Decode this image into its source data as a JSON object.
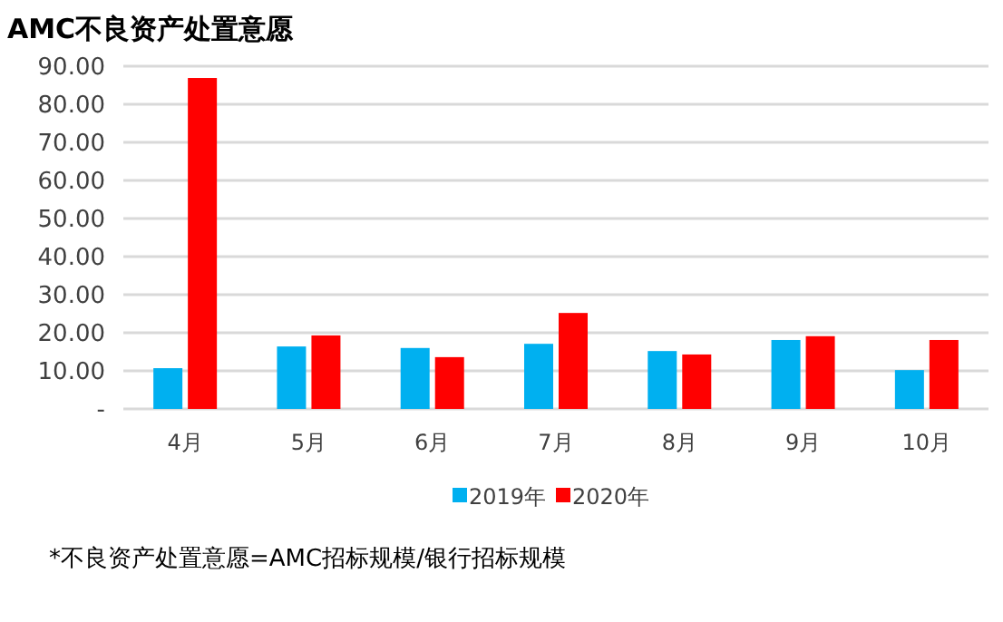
{
  "chart_data": {
    "type": "bar",
    "title": "AMC不良资产处置意愿",
    "categories": [
      "4月",
      "5月",
      "6月",
      "7月",
      "8月",
      "9月",
      "10月"
    ],
    "series": [
      {
        "name": "2019年",
        "color": "#00b0f0",
        "values": [
          10.7,
          16.4,
          16.0,
          17.1,
          15.2,
          18.1,
          10.2
        ]
      },
      {
        "name": "2020年",
        "color": "#ff0000",
        "values": [
          86.9,
          19.3,
          13.6,
          25.2,
          14.3,
          19.1,
          18.1
        ]
      }
    ],
    "ylim": [
      0,
      90
    ],
    "yticks": [
      {
        "value": 0,
        "label": "-"
      },
      {
        "value": 10,
        "label": "10.00"
      },
      {
        "value": 20,
        "label": "20.00"
      },
      {
        "value": 30,
        "label": "30.00"
      },
      {
        "value": 40,
        "label": "40.00"
      },
      {
        "value": 50,
        "label": "50.00"
      },
      {
        "value": 60,
        "label": "60.00"
      },
      {
        "value": 70,
        "label": "70.00"
      },
      {
        "value": 80,
        "label": "80.00"
      },
      {
        "value": 90,
        "label": "90.00"
      }
    ],
    "grid": "y",
    "legend": "bottom",
    "annotations": [
      "*不良资产处置意愿=AMC招标规模/银行招标规模"
    ]
  }
}
